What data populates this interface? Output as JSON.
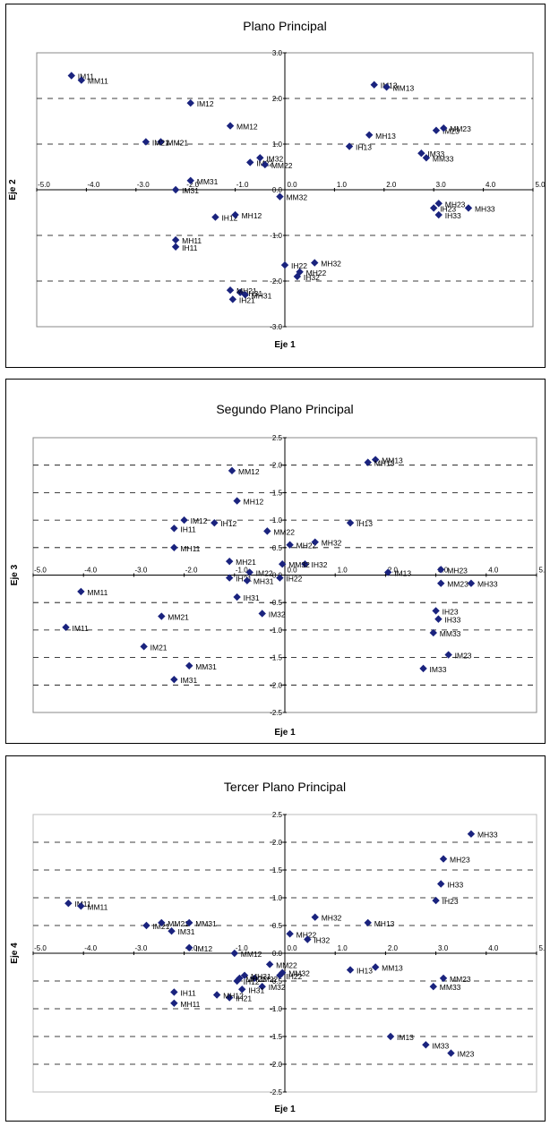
{
  "chart_data": [
    {
      "type": "scatter",
      "title": "Plano Principal",
      "xlabel": "Eje 1",
      "ylabel": "Eje 2",
      "xlim": [
        -5,
        5
      ],
      "ylim": [
        -3,
        3
      ],
      "xticks": [
        "-5.0",
        "-4.0",
        "-3.0",
        "-2.0",
        "-1.0",
        "0.0",
        "1.0",
        "2.0",
        "3.0",
        "4.0",
        "5.0"
      ],
      "yticks": [
        "-3.0",
        "-2.0",
        "-1.0",
        "0.0",
        "1.0",
        "2.0",
        "3.0"
      ],
      "marker_color": "#1a237e",
      "points": [
        {
          "label": "IM11",
          "x": -4.3,
          "y": 2.5
        },
        {
          "label": "MM11",
          "x": -4.1,
          "y": 2.4
        },
        {
          "label": "IM12",
          "x": -1.9,
          "y": 1.9
        },
        {
          "label": "MM21",
          "x": -2.5,
          "y": 1.05
        },
        {
          "label": "IM21",
          "x": -2.8,
          "y": 1.05
        },
        {
          "label": "MM12",
          "x": -1.1,
          "y": 1.4
        },
        {
          "label": "IM22",
          "x": -0.7,
          "y": 0.6
        },
        {
          "label": "MM22",
          "x": -0.4,
          "y": 0.55
        },
        {
          "label": "IM32",
          "x": -0.5,
          "y": 0.7
        },
        {
          "label": "MM31",
          "x": -1.9,
          "y": 0.2
        },
        {
          "label": "IM31",
          "x": -2.2,
          "y": 0.0
        },
        {
          "label": "IH12",
          "x": -1.4,
          "y": -0.6
        },
        {
          "label": "MH12",
          "x": -1.0,
          "y": -0.55
        },
        {
          "label": "MM32",
          "x": -0.1,
          "y": -0.15
        },
        {
          "label": "MH11",
          "x": -2.2,
          "y": -1.1
        },
        {
          "label": "IH11",
          "x": -2.2,
          "y": -1.25
        },
        {
          "label": "IH22",
          "x": 0.0,
          "y": -1.65
        },
        {
          "label": "MH22",
          "x": 0.3,
          "y": -1.8
        },
        {
          "label": "MH32",
          "x": 0.6,
          "y": -1.6
        },
        {
          "label": "IH32",
          "x": 0.25,
          "y": -1.9
        },
        {
          "label": "IH31",
          "x": -0.9,
          "y": -2.25
        },
        {
          "label": "MH21",
          "x": -1.1,
          "y": -2.2
        },
        {
          "label": "MH31",
          "x": -0.8,
          "y": -2.3
        },
        {
          "label": "IH21",
          "x": -1.05,
          "y": -2.4
        },
        {
          "label": "IM13",
          "x": 1.8,
          "y": 2.3
        },
        {
          "label": "MM13",
          "x": 2.05,
          "y": 2.25
        },
        {
          "label": "IH13",
          "x": 1.3,
          "y": 0.95
        },
        {
          "label": "MH13",
          "x": 1.7,
          "y": 1.2
        },
        {
          "label": "IM23",
          "x": 3.05,
          "y": 1.3
        },
        {
          "label": "MM23",
          "x": 3.2,
          "y": 1.35
        },
        {
          "label": "IM33",
          "x": 2.75,
          "y": 0.8
        },
        {
          "label": "MM33",
          "x": 2.85,
          "y": 0.7
        },
        {
          "label": "IH23",
          "x": 3.0,
          "y": -0.4
        },
        {
          "label": "MH23",
          "x": 3.1,
          "y": -0.3
        },
        {
          "label": "IH33",
          "x": 3.1,
          "y": -0.55
        },
        {
          "label": "MH33",
          "x": 3.7,
          "y": -0.4
        }
      ]
    },
    {
      "type": "scatter",
      "title": "Segundo Plano Principal",
      "xlabel": "Eje 1",
      "ylabel": "Eje 3",
      "xlim": [
        -5,
        5
      ],
      "ylim": [
        -2.5,
        2.5
      ],
      "xticks": [
        "-5.0",
        "-4.0",
        "-3.0",
        "-2.0",
        "-1.0",
        "0.0",
        "1.0",
        "2.0",
        "3.0",
        "4.0",
        "5.0"
      ],
      "yticks": [
        "-2.5",
        "-2.0",
        "-1.5",
        "-1.0",
        "-0.5",
        "0.0",
        "0.5",
        "1.0",
        "1.5",
        "2.0",
        "2.5"
      ],
      "marker_color": "#1a237e",
      "points": [
        {
          "label": "MM13",
          "x": 1.8,
          "y": 2.1
        },
        {
          "label": "MH13",
          "x": 1.65,
          "y": 2.05
        },
        {
          "label": "MM12",
          "x": -1.05,
          "y": 1.9
        },
        {
          "label": "MH12",
          "x": -0.95,
          "y": 1.35
        },
        {
          "label": "IH11",
          "x": -2.2,
          "y": 0.85
        },
        {
          "label": "IM12",
          "x": -2.0,
          "y": 1.0
        },
        {
          "label": "IH12",
          "x": -1.4,
          "y": 0.95
        },
        {
          "label": "IH13",
          "x": 1.3,
          "y": 0.95
        },
        {
          "label": "MM22",
          "x": -0.35,
          "y": 0.8
        },
        {
          "label": "MH22",
          "x": 0.1,
          "y": 0.55
        },
        {
          "label": "MH32",
          "x": 0.6,
          "y": 0.6
        },
        {
          "label": "MH11",
          "x": -2.2,
          "y": 0.5
        },
        {
          "label": "MH21",
          "x": -1.1,
          "y": 0.25
        },
        {
          "label": "IH32",
          "x": 0.4,
          "y": 0.2
        },
        {
          "label": "MM32",
          "x": -0.05,
          "y": 0.2
        },
        {
          "label": "IM22",
          "x": -0.7,
          "y": 0.05
        },
        {
          "label": "IH22",
          "x": -0.1,
          "y": -0.05
        },
        {
          "label": "IH21",
          "x": -1.1,
          "y": -0.05
        },
        {
          "label": "MH31",
          "x": -0.75,
          "y": -0.1
        },
        {
          "label": "IH31",
          "x": -0.95,
          "y": -0.4
        },
        {
          "label": "IM32",
          "x": -0.45,
          "y": -0.7
        },
        {
          "label": "IM13",
          "x": 2.05,
          "y": 0.05
        },
        {
          "label": "MH23",
          "x": 3.1,
          "y": 0.1
        },
        {
          "label": "MM23",
          "x": 3.1,
          "y": -0.15
        },
        {
          "label": "MH33",
          "x": 3.7,
          "y": -0.15
        },
        {
          "label": "IH23",
          "x": 3.0,
          "y": -0.65
        },
        {
          "label": "IH33",
          "x": 3.05,
          "y": -0.8
        },
        {
          "label": "MM33",
          "x": 2.95,
          "y": -1.05
        },
        {
          "label": "IM23",
          "x": 3.25,
          "y": -1.45
        },
        {
          "label": "IM33",
          "x": 2.75,
          "y": -1.7
        },
        {
          "label": "MM11",
          "x": -4.05,
          "y": -0.3
        },
        {
          "label": "IM11",
          "x": -4.35,
          "y": -0.95
        },
        {
          "label": "MM21",
          "x": -2.45,
          "y": -0.75
        },
        {
          "label": "IM21",
          "x": -2.8,
          "y": -1.3
        },
        {
          "label": "MM31",
          "x": -1.9,
          "y": -1.65
        },
        {
          "label": "IM31",
          "x": -2.2,
          "y": -1.9
        }
      ]
    },
    {
      "type": "scatter",
      "title": "Tercer Plano Principal",
      "xlabel": "Eje 1",
      "ylabel": "Eje 4",
      "xlim": [
        -5,
        5
      ],
      "ylim": [
        -2.5,
        2.5
      ],
      "xticks": [
        "-5.0",
        "-4.0",
        "-3.0",
        "-2.0",
        "-1.0",
        "0.0",
        "1.0",
        "2.0",
        "3.0",
        "4.0",
        "5.0"
      ],
      "yticks": [
        "-2.5",
        "-2.0",
        "-1.5",
        "-1.0",
        "-0.5",
        "0.0",
        "0.5",
        "1.0",
        "1.5",
        "2.0",
        "2.5"
      ],
      "marker_color": "#1a237e",
      "points": [
        {
          "label": "MH33",
          "x": 3.7,
          "y": 2.15
        },
        {
          "label": "MH23",
          "x": 3.15,
          "y": 1.7
        },
        {
          "label": "IH33",
          "x": 3.1,
          "y": 1.25
        },
        {
          "label": "IH23",
          "x": 3.0,
          "y": 0.95
        },
        {
          "label": "IM11",
          "x": -4.3,
          "y": 0.9
        },
        {
          "label": "MM11",
          "x": -4.05,
          "y": 0.85
        },
        {
          "label": "IM21",
          "x": -2.75,
          "y": 0.5
        },
        {
          "label": "MM21",
          "x": -2.45,
          "y": 0.55
        },
        {
          "label": "IM31",
          "x": -2.25,
          "y": 0.4
        },
        {
          "label": "MM31",
          "x": -1.9,
          "y": 0.55
        },
        {
          "label": "IM12",
          "x": -1.9,
          "y": 0.1
        },
        {
          "label": "MH22",
          "x": 0.1,
          "y": 0.35
        },
        {
          "label": "MH32",
          "x": 0.6,
          "y": 0.65
        },
        {
          "label": "IH32",
          "x": 0.45,
          "y": 0.25
        },
        {
          "label": "MH13",
          "x": 1.65,
          "y": 0.55
        },
        {
          "label": "MM12",
          "x": -1.0,
          "y": 0.0
        },
        {
          "label": "MM13",
          "x": 1.8,
          "y": -0.25
        },
        {
          "label": "IH13",
          "x": 1.3,
          "y": -0.3
        },
        {
          "label": "MM22",
          "x": -0.3,
          "y": -0.2
        },
        {
          "label": "MM32",
          "x": -0.05,
          "y": -0.35
        },
        {
          "label": "IH22",
          "x": -0.1,
          "y": -0.4
        },
        {
          "label": "IM22",
          "x": -0.6,
          "y": -0.45
        },
        {
          "label": "MH31",
          "x": -0.8,
          "y": -0.4
        },
        {
          "label": "MH21",
          "x": -0.9,
          "y": -0.45
        },
        {
          "label": "IH12",
          "x": -0.95,
          "y": -0.5
        },
        {
          "label": "IM32",
          "x": -0.45,
          "y": -0.6
        },
        {
          "label": "IH31",
          "x": -0.85,
          "y": -0.65
        },
        {
          "label": "IH21",
          "x": -1.1,
          "y": -0.8
        },
        {
          "label": "MH12",
          "x": -1.35,
          "y": -0.75
        },
        {
          "label": "IH11",
          "x": -2.2,
          "y": -0.7
        },
        {
          "label": "MH11",
          "x": -2.2,
          "y": -0.9
        },
        {
          "label": "MM23",
          "x": 3.15,
          "y": -0.45
        },
        {
          "label": "MM33",
          "x": 2.95,
          "y": -0.6
        },
        {
          "label": "IM13",
          "x": 2.1,
          "y": -1.5
        },
        {
          "label": "IM33",
          "x": 2.8,
          "y": -1.65
        },
        {
          "label": "IM23",
          "x": 3.3,
          "y": -1.8
        }
      ]
    }
  ]
}
